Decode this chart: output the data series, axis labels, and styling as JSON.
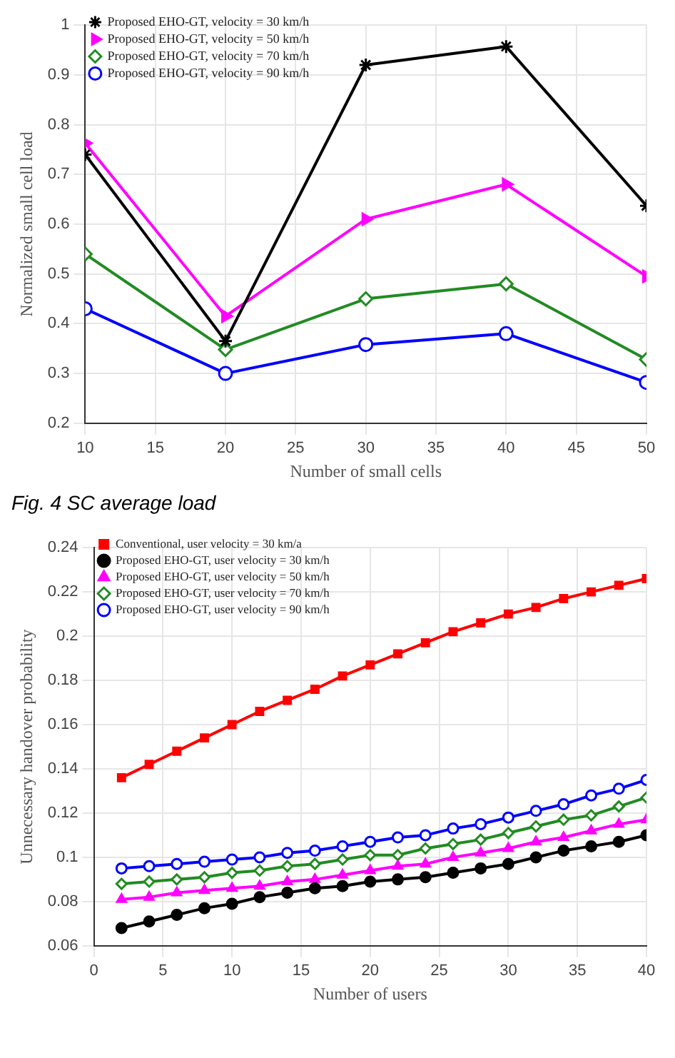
{
  "chart_data": [
    {
      "type": "line",
      "xlabel": "Number of small cells",
      "ylabel": "Normalized small cell load",
      "annotations": [
        "Fig. 4 SC average load"
      ],
      "x": [
        10,
        20,
        30,
        40,
        50
      ],
      "xlim": [
        10,
        50
      ],
      "xticks": [
        10,
        15,
        20,
        25,
        30,
        35,
        40,
        45,
        50
      ],
      "ylim": [
        0.2,
        1
      ],
      "yticks": [
        0.2,
        0.3,
        0.4,
        0.5,
        0.6,
        0.7,
        0.8,
        0.9,
        1
      ],
      "grid": true,
      "legend": "top left",
      "series": [
        {
          "name": "Proposed EHO-GT, velocity = 30 km/h",
          "color": "#000000",
          "marker": "cross",
          "values": [
            0.74,
            0.365,
            0.92,
            0.957,
            0.637
          ]
        },
        {
          "name": "Proposed EHO-GT, velocity = 50 km/h",
          "color": "#ff00ff",
          "marker": "triangle",
          "values": [
            0.763,
            0.415,
            0.61,
            0.68,
            0.495
          ]
        },
        {
          "name": "Proposed EHO-GT, velocity = 70 km/h",
          "color": "#228b22",
          "marker": "diamond",
          "values": [
            0.54,
            0.348,
            0.45,
            0.48,
            0.328
          ]
        },
        {
          "name": "Proposed EHO-GT, velocity = 90 km/h",
          "color": "#0000ff",
          "marker": "circle",
          "values": [
            0.43,
            0.3,
            0.358,
            0.38,
            0.282
          ]
        }
      ]
    },
    {
      "type": "line",
      "xlabel": "Number of users",
      "ylabel": "Unnecessary handover probability",
      "x": [
        2,
        4,
        6,
        8,
        10,
        12,
        14,
        16,
        18,
        20,
        22,
        24,
        26,
        28,
        30,
        32,
        34,
        36,
        38,
        40
      ],
      "xlim": [
        0,
        40
      ],
      "xticks": [
        0,
        5,
        10,
        15,
        20,
        25,
        30,
        35,
        40
      ],
      "ylim": [
        0.06,
        0.24
      ],
      "yticks": [
        0.06,
        0.08,
        0.1,
        0.12,
        0.14,
        0.16,
        0.18,
        0.2,
        0.22,
        0.24
      ],
      "grid": true,
      "legend": "top left",
      "series": [
        {
          "name": "Conventional, user velocity = 30 km/a",
          "color": "#ff0000",
          "marker": "square",
          "values": [
            0.136,
            0.142,
            0.148,
            0.154,
            0.16,
            0.166,
            0.171,
            0.176,
            0.182,
            0.187,
            0.192,
            0.197,
            0.202,
            0.206,
            0.21,
            0.213,
            0.217,
            0.22,
            0.223,
            0.226
          ]
        },
        {
          "name": "Proposed EHO-GT, user velocity = 30 km/h",
          "color": "#000000",
          "marker": "circle",
          "values": [
            0.068,
            0.071,
            0.074,
            0.077,
            0.079,
            0.082,
            0.084,
            0.086,
            0.087,
            0.089,
            0.09,
            0.091,
            0.093,
            0.095,
            0.097,
            0.1,
            0.103,
            0.105,
            0.107,
            0.11
          ]
        },
        {
          "name": "Proposed EHO-GT, user velocity = 50 km/h",
          "color": "#ff00ff",
          "marker": "triangle",
          "values": [
            0.081,
            0.082,
            0.084,
            0.085,
            0.086,
            0.087,
            0.089,
            0.09,
            0.092,
            0.094,
            0.096,
            0.097,
            0.1,
            0.102,
            0.104,
            0.107,
            0.109,
            0.112,
            0.115,
            0.117
          ]
        },
        {
          "name": "Proposed EHO-GT, user velocity = 70 km/h",
          "color": "#228b22",
          "marker": "diamond",
          "values": [
            0.088,
            0.089,
            0.09,
            0.091,
            0.093,
            0.094,
            0.096,
            0.097,
            0.099,
            0.101,
            0.101,
            0.104,
            0.106,
            0.108,
            0.111,
            0.114,
            0.117,
            0.119,
            0.123,
            0.127
          ]
        },
        {
          "name": "Proposed EHO-GT, user velocity = 90 km/h",
          "color": "#0000ff",
          "marker": "circle",
          "values": [
            0.095,
            0.096,
            0.097,
            0.098,
            0.099,
            0.1,
            0.102,
            0.103,
            0.105,
            0.107,
            0.109,
            0.11,
            0.113,
            0.115,
            0.118,
            0.121,
            0.124,
            0.128,
            0.131,
            0.135
          ]
        }
      ]
    }
  ]
}
